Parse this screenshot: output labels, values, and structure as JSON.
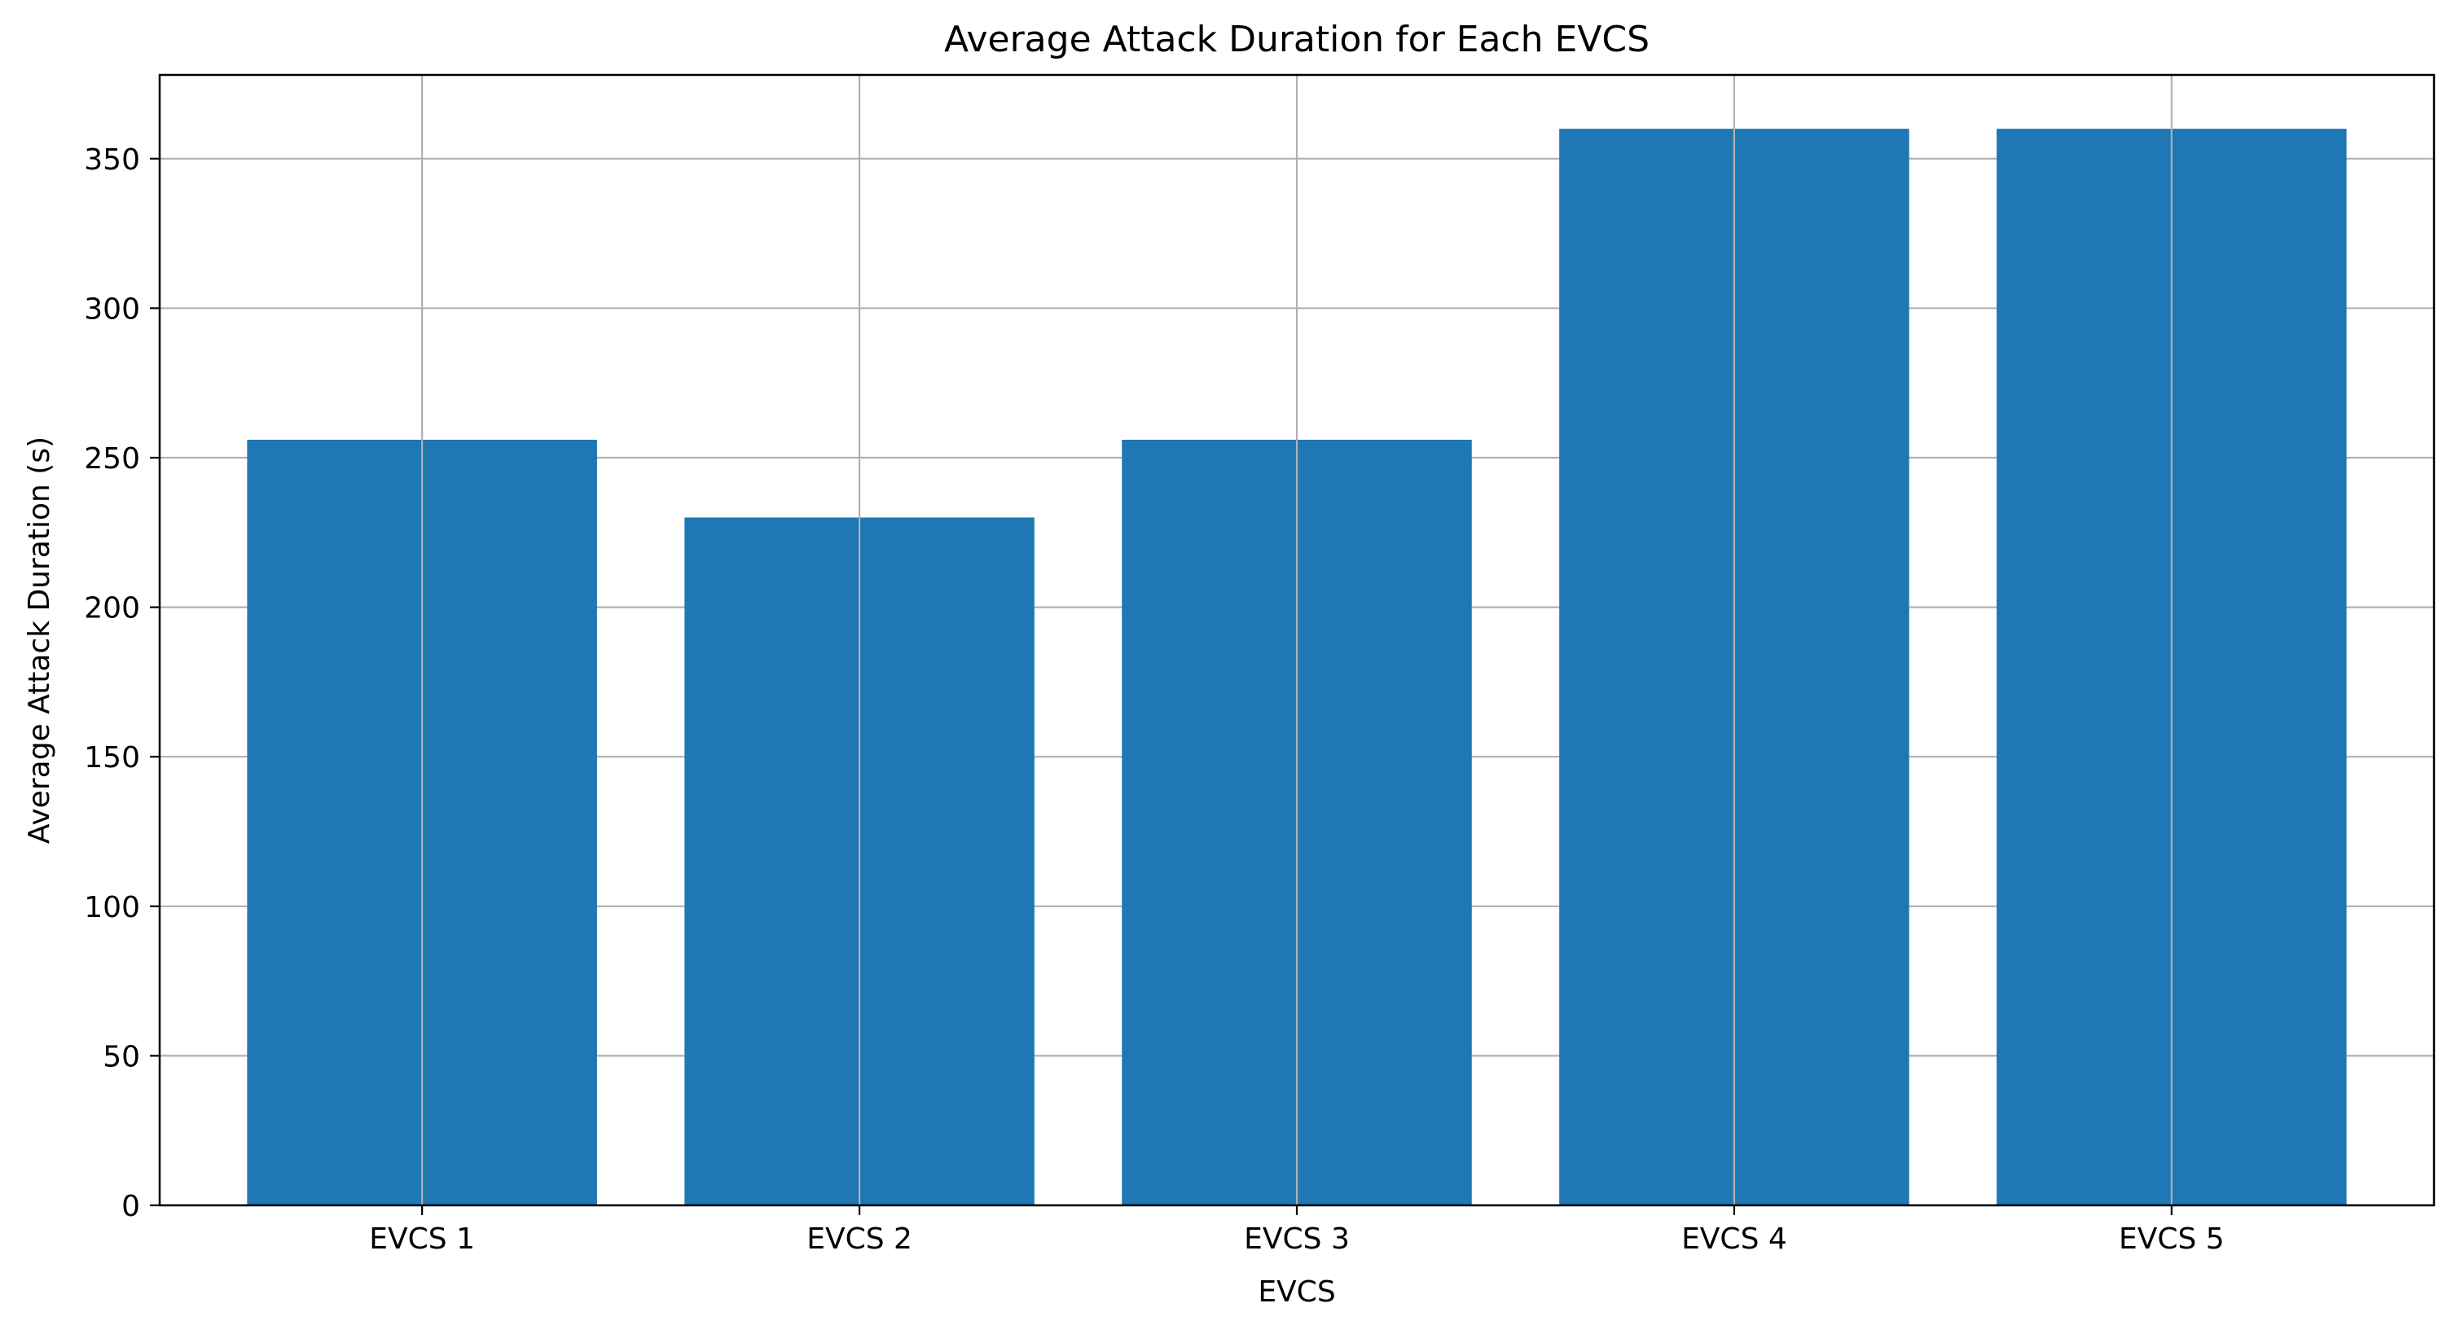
{
  "chart_data": {
    "type": "bar",
    "title": "Average Attack Duration for Each EVCS",
    "xlabel": "EVCS",
    "ylabel": "Average Attack Duration (s)",
    "categories": [
      "EVCS 1",
      "EVCS 2",
      "EVCS 3",
      "EVCS 4",
      "EVCS 5"
    ],
    "values": [
      256,
      230,
      256,
      360,
      360
    ],
    "ylim": [
      0,
      378
    ],
    "yticks": [
      0,
      50,
      100,
      150,
      200,
      250,
      300,
      350
    ],
    "grid": true,
    "bar_color": "#1f77b4",
    "grid_color": "#b0b0b0"
  }
}
